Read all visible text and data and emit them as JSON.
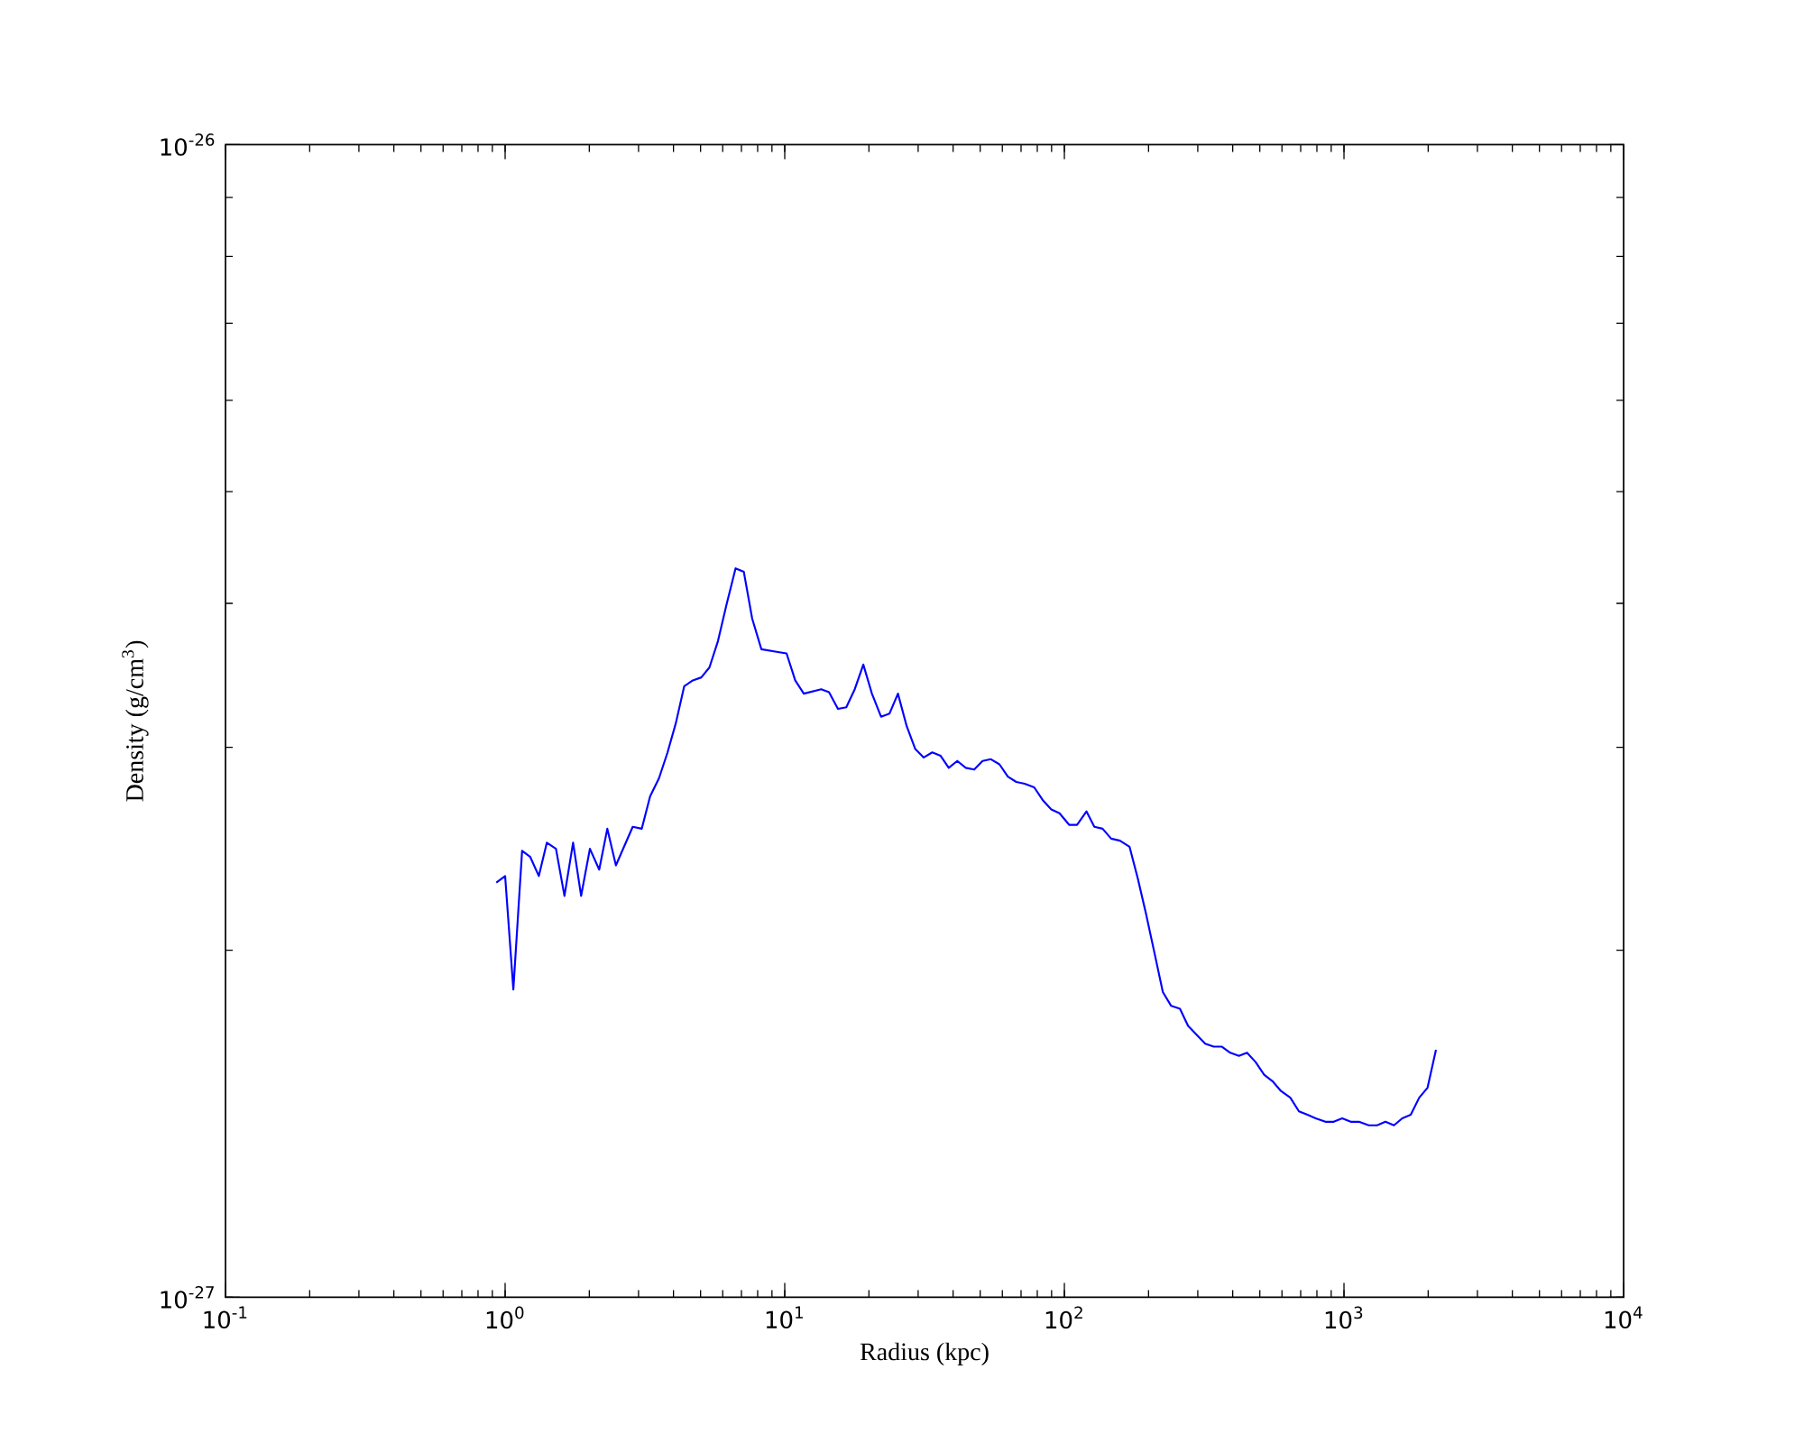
{
  "chart_data": {
    "type": "line",
    "xlabel": "Radius  (kpc)",
    "ylabel": "Density  (g/cm$^{3}$)",
    "log": "xy",
    "xlim": [
      0.1,
      10000
    ],
    "ylim": [
      1e-27,
      1e-26
    ],
    "xticks": [
      {
        "value": 0.1,
        "label": "10$^{-1}$"
      },
      {
        "value": 1,
        "label": "10$^{0}$"
      },
      {
        "value": 10,
        "label": "10$^{1}$"
      },
      {
        "value": 100,
        "label": "10$^{2}$"
      },
      {
        "value": 1000,
        "label": "10$^{3}$"
      },
      {
        "value": 10000,
        "label": "10$^{4}$"
      }
    ],
    "yticks": [
      {
        "value": 1e-27,
        "label": "10$^{-27}$"
      },
      {
        "value": 1e-26,
        "label": "10$^{-26}$"
      }
    ],
    "x": [
      0.93,
      1.0,
      1.07,
      1.15,
      1.23,
      1.32,
      1.41,
      1.52,
      1.63,
      1.75,
      1.87,
      2.01,
      2.17,
      2.32,
      2.49,
      2.86,
      3.08,
      3.3,
      3.55,
      3.81,
      4.08,
      4.37,
      4.69,
      5.03,
      5.38,
      5.77,
      6.19,
      6.67,
      7.14,
      7.65,
      8.25,
      9.46,
      10.15,
      10.9,
      11.7,
      13.5,
      14.4,
      15.5,
      16.6,
      17.8,
      19.1,
      20.5,
      22.1,
      23.7,
      25.4,
      27.3,
      29.3,
      31.4,
      33.7,
      36.1,
      38.6,
      41.4,
      44.4,
      47.6,
      51.0,
      54.6,
      58.6,
      62.8,
      67.3,
      72.1,
      78.0,
      83.7,
      89.8,
      96.1,
      104,
      111,
      120,
      128,
      137,
      147,
      158,
      171,
      183,
      196,
      210,
      225,
      241,
      259,
      277,
      297,
      319,
      342,
      366,
      392,
      421,
      450,
      483,
      518,
      555,
      595,
      643,
      690,
      740,
      792,
      858,
      919,
      985,
      1057,
      1131,
      1226,
      1313,
      1407,
      1509,
      1616,
      1733,
      1858,
      1990,
      2133
    ],
    "series": [
      {
        "color": "#0000ff",
        "values": [
          2.29e-27,
          2.32e-27,
          1.85e-27,
          2.44e-27,
          2.41e-27,
          2.32e-27,
          2.48e-27,
          2.45e-27,
          2.23e-27,
          2.48e-27,
          2.23e-27,
          2.45e-27,
          2.35e-27,
          2.55e-27,
          2.37e-27,
          2.56e-27,
          2.55e-27,
          2.72e-27,
          2.82e-27,
          2.97e-27,
          3.15e-27,
          3.39e-27,
          3.43e-27,
          3.45e-27,
          3.52e-27,
          3.71e-27,
          3.99e-27,
          4.29e-27,
          4.26e-27,
          3.88e-27,
          3.65e-27,
          3.63e-27,
          3.62e-27,
          3.43e-27,
          3.34e-27,
          3.37e-27,
          3.35e-27,
          3.24e-27,
          3.25e-27,
          3.37e-27,
          3.54e-27,
          3.34e-27,
          3.19e-27,
          3.21e-27,
          3.34e-27,
          3.13e-27,
          2.99e-27,
          2.94e-27,
          2.97e-27,
          2.95e-27,
          2.88e-27,
          2.92e-27,
          2.88e-27,
          2.87e-27,
          2.92e-27,
          2.93e-27,
          2.9e-27,
          2.83e-27,
          2.8e-27,
          2.79e-27,
          2.77e-27,
          2.7e-27,
          2.65e-27,
          2.63e-27,
          2.57e-27,
          2.57e-27,
          2.64e-27,
          2.56e-27,
          2.55e-27,
          2.5e-27,
          2.49e-27,
          2.46e-27,
          2.31e-27,
          2.15e-27,
          1.99e-27,
          1.84e-27,
          1.79e-27,
          1.78e-27,
          1.72e-27,
          1.69e-27,
          1.66e-27,
          1.65e-27,
          1.65e-27,
          1.63e-27,
          1.62e-27,
          1.63e-27,
          1.6e-27,
          1.56e-27,
          1.54e-27,
          1.51e-27,
          1.49e-27,
          1.45e-27,
          1.44e-27,
          1.43e-27,
          1.42e-27,
          1.42e-27,
          1.43e-27,
          1.42e-27,
          1.42e-27,
          1.41e-27,
          1.41e-27,
          1.42e-27,
          1.41e-27,
          1.43e-27,
          1.44e-27,
          1.49e-27,
          1.52e-27,
          1.64e-27
        ]
      }
    ]
  }
}
